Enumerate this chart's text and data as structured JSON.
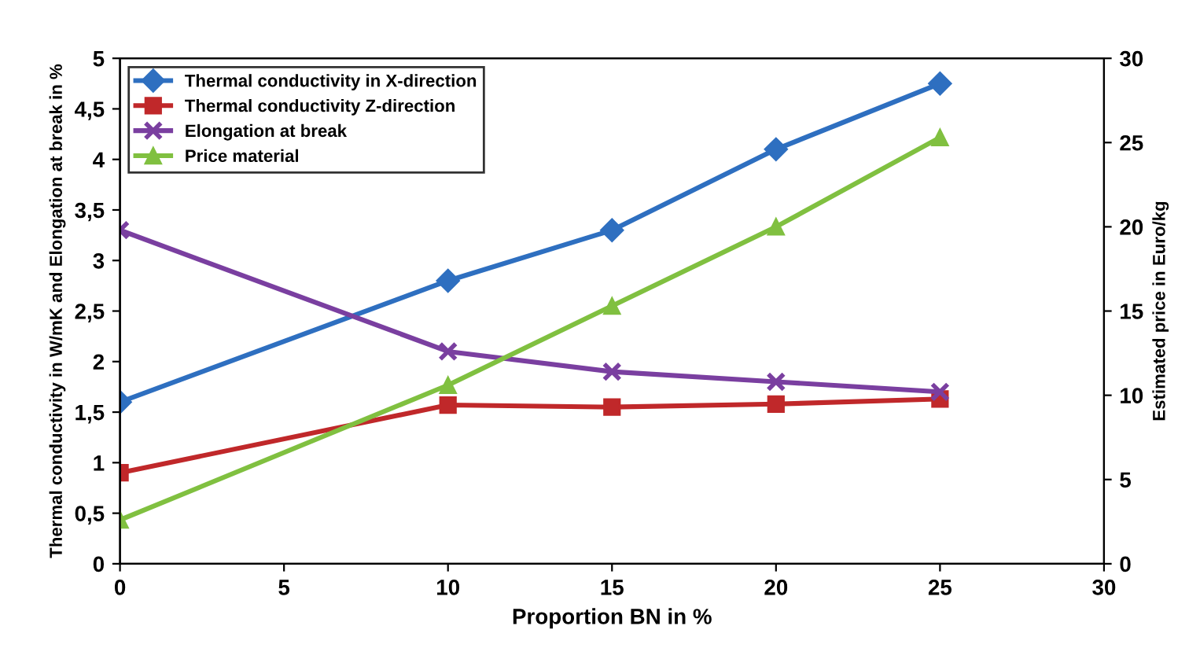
{
  "chart_data": {
    "type": "line",
    "xlabel": "Proportion BN in %",
    "ylabel": "Thermal conductivity in W/mK and Elongation at break in %",
    "y2label": "Estimated price in Euro/kg",
    "x": [
      0,
      10,
      15,
      20,
      25
    ],
    "series": [
      {
        "name": "Thermal conductivity in X-direction",
        "color": "#2e6fc0",
        "marker": "diamond",
        "values": [
          1.6,
          2.8,
          3.3,
          4.1,
          4.75
        ]
      },
      {
        "name": "Thermal conductivity Z-direction",
        "color": "#c0282a",
        "marker": "square",
        "values": [
          0.9,
          1.57,
          1.55,
          1.58,
          1.63
        ]
      },
      {
        "name": "Elongation at break",
        "color": "#7a3fa0",
        "marker": "cross",
        "values": [
          3.3,
          2.1,
          1.9,
          1.8,
          1.7
        ]
      },
      {
        "name": "Price material",
        "color": "#80c040",
        "marker": "triangle",
        "axis": "y2",
        "values": [
          2.6,
          10.6,
          15.3,
          20,
          25.3
        ]
      }
    ],
    "xlim": [
      0,
      30
    ],
    "xticks": [
      0,
      5,
      10,
      15,
      20,
      25,
      30
    ],
    "ylim": [
      0,
      5
    ],
    "yticks": [
      0,
      {
        "value": 0.5,
        "label": "0,5"
      },
      1,
      {
        "value": 1.5,
        "label": "1,5"
      },
      2,
      {
        "value": 2.5,
        "label": "2,5"
      },
      3,
      {
        "value": 3.5,
        "label": "3,5"
      },
      4,
      {
        "value": 4.5,
        "label": "4,5"
      },
      5
    ],
    "y2lim": [
      0,
      30
    ],
    "y2ticks": [
      0,
      5,
      10,
      15,
      20,
      25,
      30
    ],
    "grid": false,
    "legend": "top left",
    "line_style": "solid"
  }
}
